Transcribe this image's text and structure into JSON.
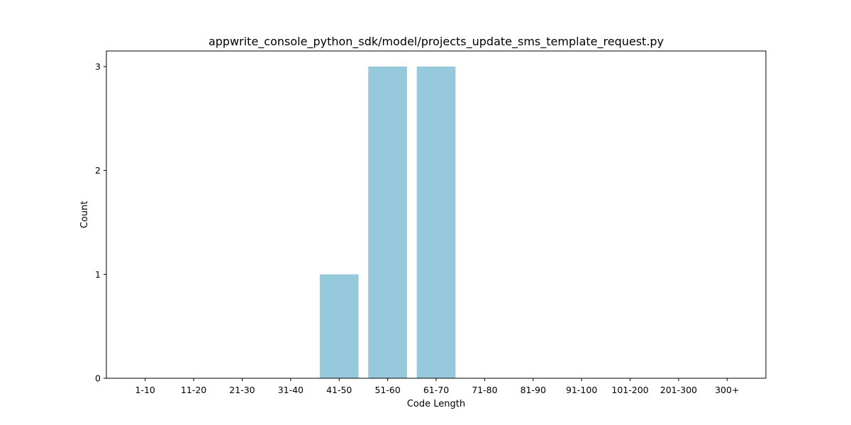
{
  "chart_data": {
    "type": "bar",
    "title": "appwrite_console_python_sdk/model/projects_update_sms_template_request.py",
    "xlabel": "Code Length",
    "ylabel": "Count",
    "categories": [
      "1-10",
      "11-20",
      "21-30",
      "31-40",
      "41-50",
      "51-60",
      "61-70",
      "71-80",
      "81-90",
      "91-100",
      "101-200",
      "201-300",
      "300+"
    ],
    "values": [
      0,
      0,
      0,
      0,
      1,
      3,
      3,
      0,
      0,
      0,
      0,
      0,
      0
    ],
    "yticks": [
      0,
      1,
      2,
      3
    ],
    "ylim": [
      0,
      3.15
    ],
    "grid": false,
    "bar_color": "#96c9dc"
  }
}
